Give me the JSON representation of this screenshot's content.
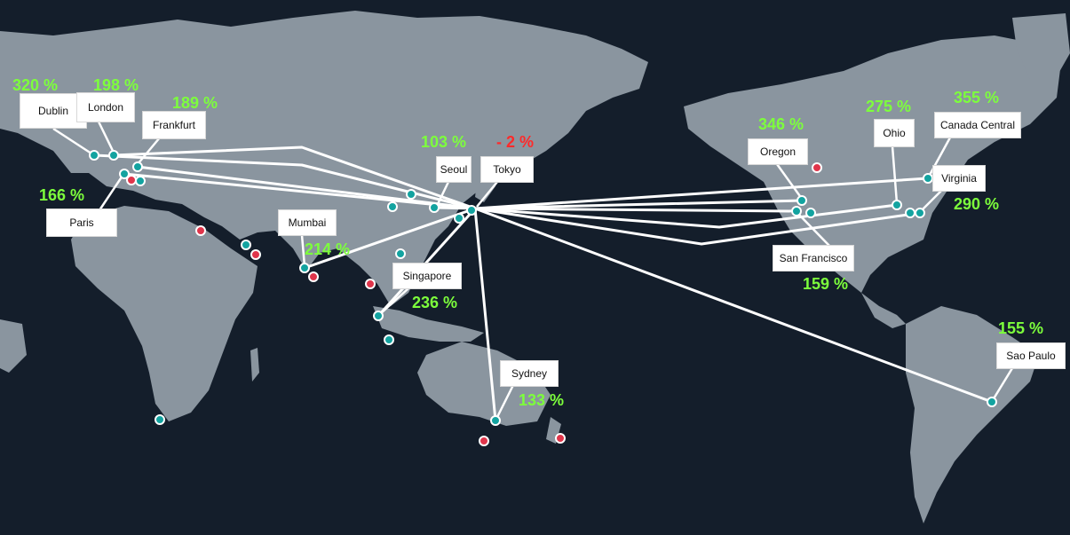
{
  "colors": {
    "background": "#141e2b",
    "land": "#8a959f",
    "node_active": "#13a3a0",
    "node_inactive": "#e0354b",
    "link": "#ffffff",
    "positive_change": "#7dff3c",
    "negative_change": "#ff2a2a"
  },
  "hub": {
    "region": "Tokyo",
    "change": "- 2 %"
  },
  "regions": [
    {
      "id": "dublin",
      "label": "Dublin",
      "change": "320 %"
    },
    {
      "id": "london",
      "label": "London",
      "change": "198 %"
    },
    {
      "id": "frankfurt",
      "label": "Frankfurt",
      "change": "189 %"
    },
    {
      "id": "paris",
      "label": "Paris",
      "change": "166 %"
    },
    {
      "id": "seoul",
      "label": "Seoul",
      "change": "103 %"
    },
    {
      "id": "mumbai",
      "label": "Mumbai",
      "change": "214 %"
    },
    {
      "id": "singapore",
      "label": "Singapore",
      "change": "236 %"
    },
    {
      "id": "sydney",
      "label": "Sydney",
      "change": "133 %"
    },
    {
      "id": "oregon",
      "label": "Oregon",
      "change": "346 %"
    },
    {
      "id": "ohio",
      "label": "Ohio",
      "change": "275 %"
    },
    {
      "id": "canada",
      "label": "Canada Central",
      "change": "355 %"
    },
    {
      "id": "virginia",
      "label": "Virginia",
      "change": "290 %"
    },
    {
      "id": "sanfrancisco",
      "label": "San Francisco",
      "change": "159 %"
    },
    {
      "id": "saopaulo",
      "label": "Sao Paulo",
      "change": "155 %"
    }
  ]
}
